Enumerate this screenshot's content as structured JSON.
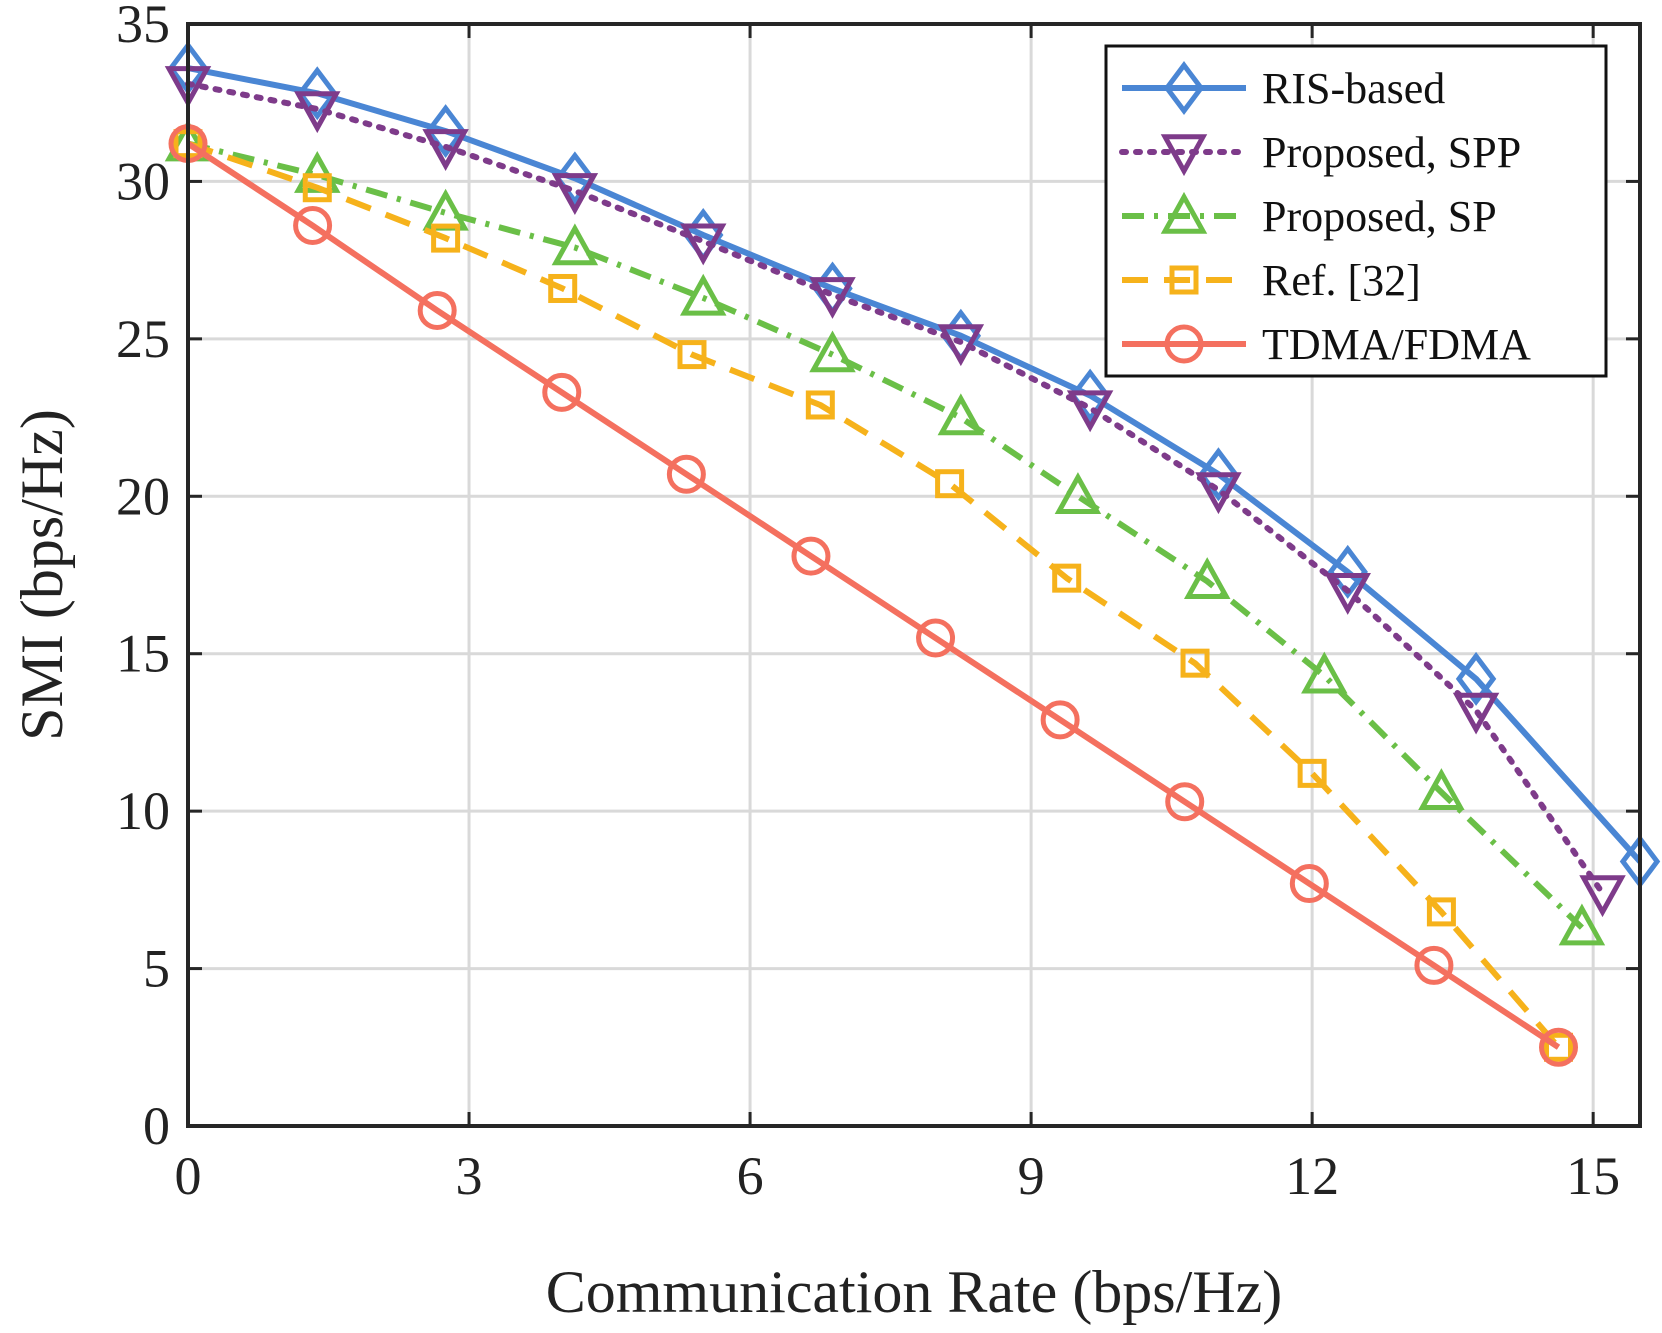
{
  "chart_data": {
    "type": "line",
    "title": "",
    "xlabel": "Communication Rate (bps/Hz)",
    "ylabel": "SMI (bps/Hz)",
    "xlim": [
      0,
      15.5
    ],
    "ylim": [
      0,
      35
    ],
    "xticks": [
      0,
      3,
      6,
      9,
      12,
      15
    ],
    "yticks": [
      0,
      5,
      10,
      15,
      20,
      25,
      30,
      35
    ],
    "grid": true,
    "legend_position": "top-right",
    "series": [
      {
        "name": "RIS-based",
        "color": "#4a86d4",
        "line": "solid",
        "marker": "diamond",
        "x": [
          0,
          1.38,
          2.75,
          4.13,
          5.5,
          6.88,
          8.25,
          9.63,
          11.0,
          12.38,
          13.75,
          15.5
        ],
        "y": [
          33.6,
          32.8,
          31.6,
          30.1,
          28.3,
          26.6,
          25.1,
          23.2,
          20.7,
          17.6,
          14.2,
          8.4
        ]
      },
      {
        "name": "Proposed, SPP",
        "color": "#7e3b8a",
        "line": "dotted",
        "marker": "triangle-down",
        "x": [
          0,
          1.38,
          2.75,
          4.13,
          5.5,
          6.88,
          8.25,
          9.63,
          11.0,
          12.38,
          13.75,
          15.1
        ],
        "y": [
          33.1,
          32.3,
          31.1,
          29.7,
          28.1,
          26.4,
          24.9,
          22.8,
          20.2,
          17.0,
          13.2,
          7.4
        ]
      },
      {
        "name": "Proposed, SP",
        "color": "#6abf47",
        "line": "dash-dot",
        "marker": "triangle-up",
        "x": [
          0,
          1.38,
          2.75,
          4.13,
          5.5,
          6.88,
          8.25,
          9.5,
          10.88,
          12.13,
          13.38,
          14.88
        ],
        "y": [
          31.2,
          30.2,
          29.0,
          27.9,
          26.3,
          24.5,
          22.5,
          20.0,
          17.3,
          14.3,
          10.6,
          6.3
        ]
      },
      {
        "name": "Ref. [32]",
        "color": "#f6b21b",
        "line": "dashed",
        "marker": "square",
        "x": [
          0,
          1.38,
          2.75,
          4.0,
          5.38,
          6.75,
          8.13,
          9.38,
          10.75,
          12.0,
          13.38,
          14.63
        ],
        "y": [
          31.2,
          29.8,
          28.2,
          26.6,
          24.5,
          22.9,
          20.4,
          17.4,
          14.7,
          11.2,
          6.8,
          2.5
        ]
      },
      {
        "name": "TDMA/FDMA",
        "color": "#f4705f",
        "line": "solid",
        "marker": "circle",
        "x": [
          0,
          1.33,
          2.66,
          3.99,
          5.32,
          6.65,
          7.98,
          9.31,
          10.64,
          11.97,
          13.3,
          14.63
        ],
        "y": [
          31.2,
          28.6,
          25.9,
          23.3,
          20.7,
          18.1,
          15.5,
          12.9,
          10.3,
          7.7,
          5.1,
          2.5
        ]
      }
    ]
  }
}
